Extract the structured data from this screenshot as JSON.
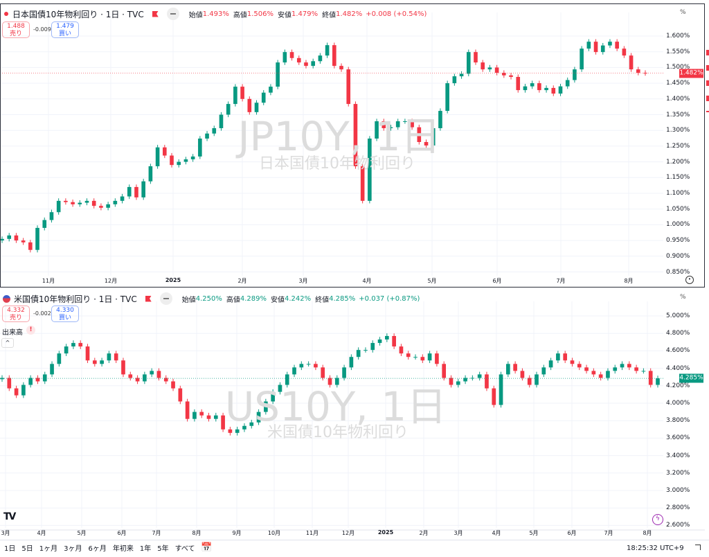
{
  "colors": {
    "up": "#089981",
    "down": "#f23645",
    "grid": "#f0f3fa",
    "buy": "#2962ff"
  },
  "top": {
    "title": "日本国債10年物利回り · 1日 · TVC",
    "ohlc": {
      "open_label": "始値",
      "open": "1.493%",
      "high_label": "高値",
      "high": "1.506%",
      "low_label": "安値",
      "low": "1.479%",
      "close_label": "終値",
      "close": "1.482%",
      "change": "+0.008 (+0.54%)"
    },
    "sell": {
      "price": "1.488",
      "label": "売り"
    },
    "spread": "-0.009",
    "buy": {
      "price": "1.479",
      "label": "買い"
    },
    "watermark": "JP10Y, 1日",
    "watermark_sub": "日本国債10年物利回り",
    "unit": "%",
    "last_price": "1.482%",
    "status_color": "#f23645"
  },
  "bottom": {
    "title": "米国債10年物利回り · 1日 · TVC",
    "ohlc": {
      "open_label": "始値",
      "open": "4.250%",
      "high_label": "高値",
      "high": "4.289%",
      "low_label": "安値",
      "low": "4.242%",
      "close_label": "終値",
      "close": "4.285%",
      "change": "+0.037 (+0.87%)"
    },
    "sell": {
      "price": "4.332",
      "label": "売り"
    },
    "spread": "-0.002",
    "buy": {
      "price": "4.330",
      "label": "買い"
    },
    "volume_label": "出来高",
    "volume_warning": "!",
    "watermark": "US10Y, 1日",
    "watermark_sub": "米国債10年物利回り",
    "unit": "%",
    "last_price": "4.285%",
    "status_color": "#089981"
  },
  "toolbar": {
    "ranges": [
      "1日",
      "5日",
      "1ヶ月",
      "3ヶ月",
      "6ヶ月",
      "年初来",
      "1年",
      "5年",
      "すべて"
    ],
    "time": "18:25:32 UTC+9"
  },
  "chart_data": [
    {
      "type": "candlestick",
      "symbol": "JP10Y",
      "ylabel": "%",
      "ylim": [
        0.85,
        1.65
      ],
      "y_ticks": [
        "1.600%",
        "1.550%",
        "1.500%",
        "1.450%",
        "1.400%",
        "1.350%",
        "1.300%",
        "1.250%",
        "1.200%",
        "1.150%",
        "1.100%",
        "1.050%",
        "1.000%",
        "0.950%",
        "0.900%",
        "0.850%"
      ],
      "x_ticks": [
        "11月",
        "12月",
        "2025",
        "2月",
        "3月",
        "4月",
        "5月",
        "6月",
        "7月",
        "8月"
      ],
      "closes": [
        0.955,
        0.966,
        0.95,
        0.944,
        0.92,
        0.99,
        1.015,
        1.04,
        1.076,
        1.072,
        1.065,
        1.07,
        1.076,
        1.06,
        1.054,
        1.065,
        1.076,
        1.09,
        1.12,
        1.087,
        1.138,
        1.186,
        1.246,
        1.22,
        1.19,
        1.2,
        1.208,
        1.217,
        1.274,
        1.29,
        1.307,
        1.35,
        1.384,
        1.439,
        1.4,
        1.358,
        1.388,
        1.42,
        1.439,
        1.516,
        1.549,
        1.53,
        1.516,
        1.505,
        1.52,
        1.538,
        1.571,
        1.505,
        1.494,
        1.384,
        1.186,
        1.076,
        1.274,
        1.329,
        1.307,
        1.31,
        1.329,
        1.329,
        1.31,
        1.263,
        1.252,
        1.307,
        1.362,
        1.45,
        1.472,
        1.48,
        1.549,
        1.516,
        1.494,
        1.5,
        1.483,
        1.475,
        1.47,
        1.428,
        1.44,
        1.45,
        1.428,
        1.435,
        1.417,
        1.44,
        1.46,
        1.494,
        1.56,
        1.582,
        1.549,
        1.57,
        1.582,
        1.56,
        1.538,
        1.494,
        1.483,
        1.482
      ]
    },
    {
      "type": "candlestick",
      "symbol": "US10Y",
      "ylabel": "%",
      "ylim": [
        2.6,
        5.0
      ],
      "y_ticks": [
        "5.000%",
        "4.800%",
        "4.600%",
        "4.400%",
        "4.200%",
        "4.000%",
        "3.800%",
        "3.600%",
        "3.400%",
        "3.200%",
        "3.000%",
        "2.800%",
        "2.600%"
      ],
      "x_ticks": [
        "3月",
        "4月",
        "5月",
        "6月",
        "7月",
        "8月",
        "9月",
        "10月",
        "11月",
        "12月",
        "2025",
        "2月",
        "3月",
        "4月",
        "5月",
        "6月",
        "7月",
        "8月"
      ],
      "closes": [
        4.29,
        4.17,
        4.09,
        4.21,
        4.29,
        4.25,
        4.33,
        4.45,
        4.57,
        4.65,
        4.69,
        4.65,
        4.49,
        4.45,
        4.49,
        4.57,
        4.49,
        4.33,
        4.29,
        4.25,
        4.33,
        4.37,
        4.29,
        4.25,
        4.17,
        4.02,
        3.82,
        3.9,
        3.86,
        3.82,
        3.86,
        3.7,
        3.66,
        3.7,
        3.74,
        3.78,
        3.9,
        4.02,
        4.13,
        4.21,
        4.33,
        4.41,
        4.45,
        4.45,
        4.41,
        4.29,
        4.21,
        4.29,
        4.41,
        4.53,
        4.61,
        4.61,
        4.69,
        4.73,
        4.77,
        4.65,
        4.57,
        4.53,
        4.53,
        4.49,
        4.57,
        4.45,
        4.29,
        4.21,
        4.25,
        4.29,
        4.29,
        4.33,
        4.17,
        3.98,
        4.33,
        4.45,
        4.37,
        4.29,
        4.21,
        4.33,
        4.41,
        4.49,
        4.57,
        4.49,
        4.45,
        4.41,
        4.37,
        4.33,
        4.29,
        4.37,
        4.41,
        4.45,
        4.41,
        4.37,
        4.37,
        4.21,
        4.285
      ]
    }
  ]
}
